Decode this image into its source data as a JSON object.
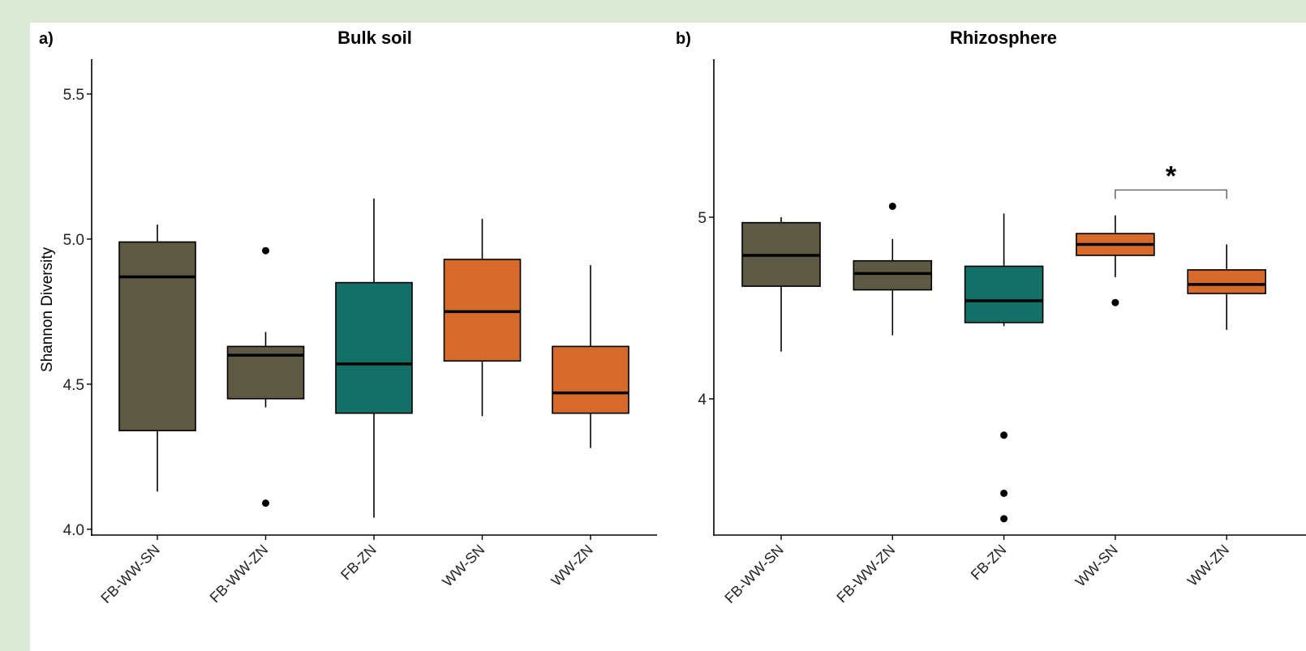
{
  "colors": {
    "background": "#dce9d6",
    "panel": "#ffffff",
    "FB_WW": "#5e5942",
    "FB": "#137066",
    "WW": "#d66a2a"
  },
  "chart_data": [
    {
      "type": "box",
      "panel_label": "a)",
      "title": "Bulk soil",
      "ylabel": "Shannon Diversity",
      "xlabel": "",
      "ylim": [
        3.98,
        5.62
      ],
      "yticks": [
        4.0,
        4.5,
        5.0,
        5.5
      ],
      "ytick_labels": [
        "4.0",
        "4.5",
        "5.0",
        "5.5"
      ],
      "grid": false,
      "legend": "none",
      "categories": [
        "FB-WW-SN",
        "FB-WW-ZN",
        "FB-ZN",
        "WW-SN",
        "WW-ZN"
      ],
      "boxes": [
        {
          "category": "FB-WW-SN",
          "color": "#5e5942",
          "whisker_low": 4.13,
          "q1": 4.34,
          "median": 4.87,
          "q3": 4.99,
          "whisker_high": 5.05,
          "outliers": []
        },
        {
          "category": "FB-WW-ZN",
          "color": "#5e5942",
          "whisker_low": 4.42,
          "q1": 4.45,
          "median": 4.6,
          "q3": 4.63,
          "whisker_high": 4.68,
          "outliers": [
            4.96,
            4.09
          ]
        },
        {
          "category": "FB-ZN",
          "color": "#137066",
          "whisker_low": 4.04,
          "q1": 4.4,
          "median": 4.57,
          "q3": 4.85,
          "whisker_high": 5.14,
          "outliers": []
        },
        {
          "category": "WW-SN",
          "color": "#d66a2a",
          "whisker_low": 4.39,
          "q1": 4.58,
          "median": 4.75,
          "q3": 4.93,
          "whisker_high": 5.07,
          "outliers": []
        },
        {
          "category": "WW-ZN",
          "color": "#d66a2a",
          "whisker_low": 4.28,
          "q1": 4.4,
          "median": 4.47,
          "q3": 4.63,
          "whisker_high": 4.91,
          "outliers": []
        }
      ],
      "annotations": []
    },
    {
      "type": "box",
      "panel_label": "b)",
      "title": "Rhizosphere",
      "ylabel": "",
      "xlabel": "",
      "ylim": [
        3.25,
        5.87
      ],
      "yticks": [
        4,
        5
      ],
      "ytick_labels": [
        "4",
        "5"
      ],
      "grid": false,
      "legend": "none",
      "categories": [
        "FB-WW-SN",
        "FB-WW-ZN",
        "FB-ZN",
        "WW-SN",
        "WW-ZN"
      ],
      "boxes": [
        {
          "category": "FB-WW-SN",
          "color": "#5e5942",
          "whisker_low": 4.26,
          "q1": 4.62,
          "median": 4.79,
          "q3": 4.97,
          "whisker_high": 5.0,
          "outliers": []
        },
        {
          "category": "FB-WW-ZN",
          "color": "#5e5942",
          "whisker_low": 4.35,
          "q1": 4.6,
          "median": 4.69,
          "q3": 4.76,
          "whisker_high": 4.88,
          "outliers": [
            5.06
          ]
        },
        {
          "category": "FB-ZN",
          "color": "#137066",
          "whisker_low": 4.4,
          "q1": 4.42,
          "median": 4.54,
          "q3": 4.73,
          "whisker_high": 5.02,
          "outliers": [
            3.8,
            3.48,
            3.34
          ]
        },
        {
          "category": "WW-SN",
          "color": "#d66a2a",
          "whisker_low": 4.67,
          "q1": 4.79,
          "median": 4.85,
          "q3": 4.91,
          "whisker_high": 5.01,
          "outliers": [
            4.53
          ]
        },
        {
          "category": "WW-ZN",
          "color": "#d66a2a",
          "whisker_low": 4.38,
          "q1": 4.58,
          "median": 4.63,
          "q3": 4.71,
          "whisker_high": 4.85,
          "outliers": []
        }
      ],
      "annotations": [
        {
          "text": "*",
          "from": "WW-SN",
          "to": "WW-ZN",
          "bracket_y": 5.15,
          "tip_y": 5.1
        }
      ]
    }
  ]
}
